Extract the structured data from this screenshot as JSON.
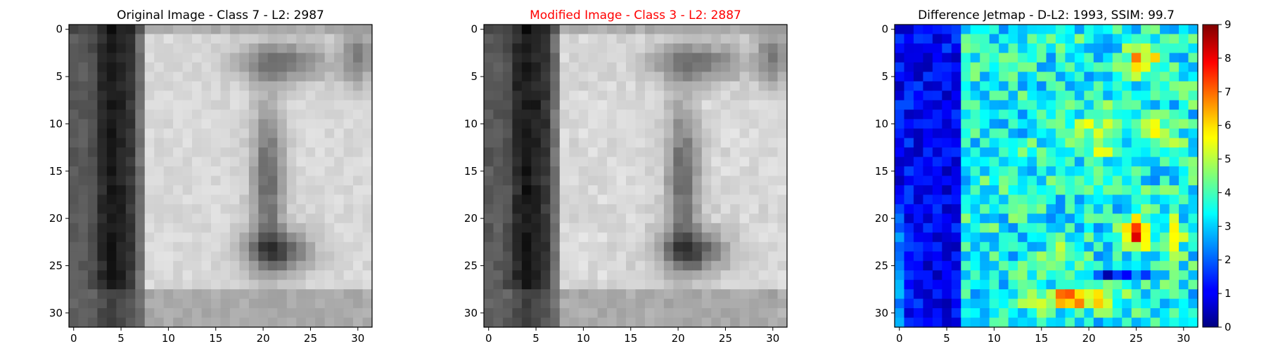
{
  "figure": {
    "background": "#ffffff"
  },
  "chart_data": [
    {
      "type": "heatmap",
      "title": "Original Image - Class 7 - L2: 2987",
      "title_color": "#000000",
      "colormap": "gray",
      "grid_size": 32,
      "xticks": [
        0,
        5,
        10,
        15,
        20,
        25,
        30
      ],
      "yticks": [
        0,
        5,
        10,
        15,
        20,
        25,
        30
      ],
      "xlim": [
        -0.5,
        31.5
      ],
      "ylim": [
        31.5,
        -0.5
      ],
      "description": "grayscale 32x32 image of a house number, dark vertical stroke near x=4, bright digit region x=8-31"
    },
    {
      "type": "heatmap",
      "title": "Modified Image - Class 3 - L2: 2887",
      "title_color": "#ff0000",
      "colormap": "gray",
      "grid_size": 32,
      "xticks": [
        0,
        5,
        10,
        15,
        20,
        25,
        30
      ],
      "yticks": [
        0,
        5,
        10,
        15,
        20,
        25,
        30
      ],
      "xlim": [
        -0.5,
        31.5
      ],
      "ylim": [
        31.5,
        -0.5
      ]
    },
    {
      "type": "heatmap",
      "title": "Difference Jetmap - D-L2: 1993, SSIM: 99.7",
      "title_color": "#000000",
      "colormap": "jet",
      "grid_size": 32,
      "xticks": [
        0,
        5,
        10,
        15,
        20,
        25,
        30
      ],
      "yticks": [
        0,
        5,
        10,
        15,
        20,
        25,
        30
      ],
      "xlim": [
        -0.5,
        31.5
      ],
      "ylim": [
        31.5,
        -0.5
      ],
      "colorbar": {
        "min": 0,
        "max": 9,
        "ticks": [
          0,
          1,
          2,
          3,
          4,
          5,
          6,
          7,
          8,
          9
        ]
      }
    }
  ]
}
